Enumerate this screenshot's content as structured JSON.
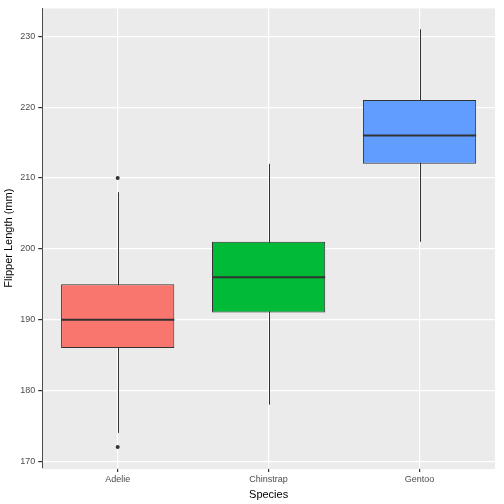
{
  "chart_data": {
    "type": "box",
    "x_label": "Species",
    "y_label": "Flipper Length (mm)",
    "categories": [
      "Adelie",
      "Chinstrap",
      "Gentoo"
    ],
    "boxes": [
      {
        "min": 174,
        "q1": 186,
        "median": 190,
        "q3": 195,
        "max": 208,
        "outliers": [
          172,
          210
        ]
      },
      {
        "min": 178,
        "q1": 191,
        "median": 196,
        "q3": 201,
        "max": 212,
        "outliers": []
      },
      {
        "min": 201,
        "q1": 212,
        "median": 216,
        "q3": 221,
        "max": 231,
        "outliers": []
      }
    ],
    "colors": [
      "#F8766D",
      "#00BA38",
      "#619CFF"
    ],
    "ylim": [
      169.05,
      233.95
    ],
    "yticks": [
      170,
      180,
      190,
      200,
      210,
      220,
      230
    ],
    "grid": true
  }
}
